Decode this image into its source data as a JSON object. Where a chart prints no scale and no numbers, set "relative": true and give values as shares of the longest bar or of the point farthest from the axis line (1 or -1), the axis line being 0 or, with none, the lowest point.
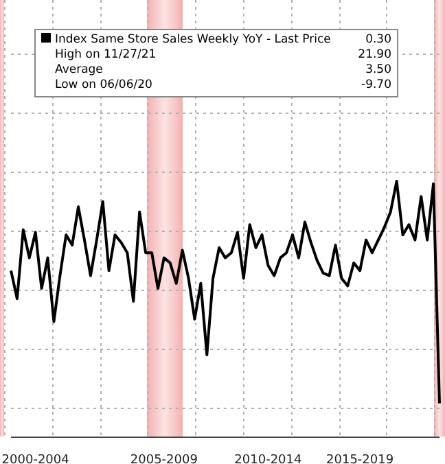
{
  "chart_data": {
    "type": "line",
    "categories": [
      null,
      null,
      null,
      null,
      "2000-2004",
      null,
      null,
      null,
      null,
      null,
      null,
      null,
      null,
      null,
      null,
      null,
      null,
      null,
      null,
      null,
      null,
      null,
      null,
      null,
      null,
      "2005-2009",
      null,
      null,
      null,
      null,
      null,
      null,
      null,
      null,
      null,
      null,
      null,
      null,
      null,
      null,
      null,
      null,
      "2010-2014",
      null,
      null,
      null,
      null,
      null,
      null,
      null,
      null,
      null,
      null,
      null,
      null,
      null,
      null,
      "2015-2019",
      null,
      null,
      null,
      null,
      null,
      null,
      null,
      null,
      null,
      null,
      null,
      null,
      null
    ],
    "series": [
      {
        "name": "Index Same Store Sales Weekly YoY - Last Price",
        "color": "#000000",
        "values": [
          0.65,
          0.54,
          0.81,
          0.7,
          0.8,
          0.58,
          0.7,
          0.45,
          0.63,
          0.79,
          0.75,
          0.9,
          0.77,
          0.63,
          0.77,
          0.92,
          0.65,
          0.79,
          0.76,
          0.72,
          0.53,
          0.88,
          0.72,
          0.72,
          0.58,
          0.7,
          0.68,
          0.6,
          0.73,
          0.62,
          0.46,
          0.6,
          0.32,
          0.62,
          0.74,
          0.7,
          0.72,
          0.8,
          0.62,
          0.83,
          0.74,
          0.79,
          0.67,
          0.63,
          0.7,
          0.72,
          0.79,
          0.7,
          0.84,
          0.76,
          0.69,
          0.64,
          0.63,
          0.75,
          0.62,
          0.59,
          0.68,
          0.65,
          0.77,
          0.72,
          0.77,
          0.82,
          0.88,
          1.0,
          0.79,
          0.83,
          0.77,
          0.94,
          0.77,
          0.99,
          0.13
        ]
      }
    ],
    "relative": true,
    "annotations": [
      "0.30",
      "High on 11/27/21",
      "21.90",
      "Average",
      "3.50",
      "Low on 06/06/20",
      "-9.70"
    ],
    "tick_labels": "x",
    "grid": true,
    "legend": "top",
    "marker": "none",
    "line_style": "solid"
  }
}
